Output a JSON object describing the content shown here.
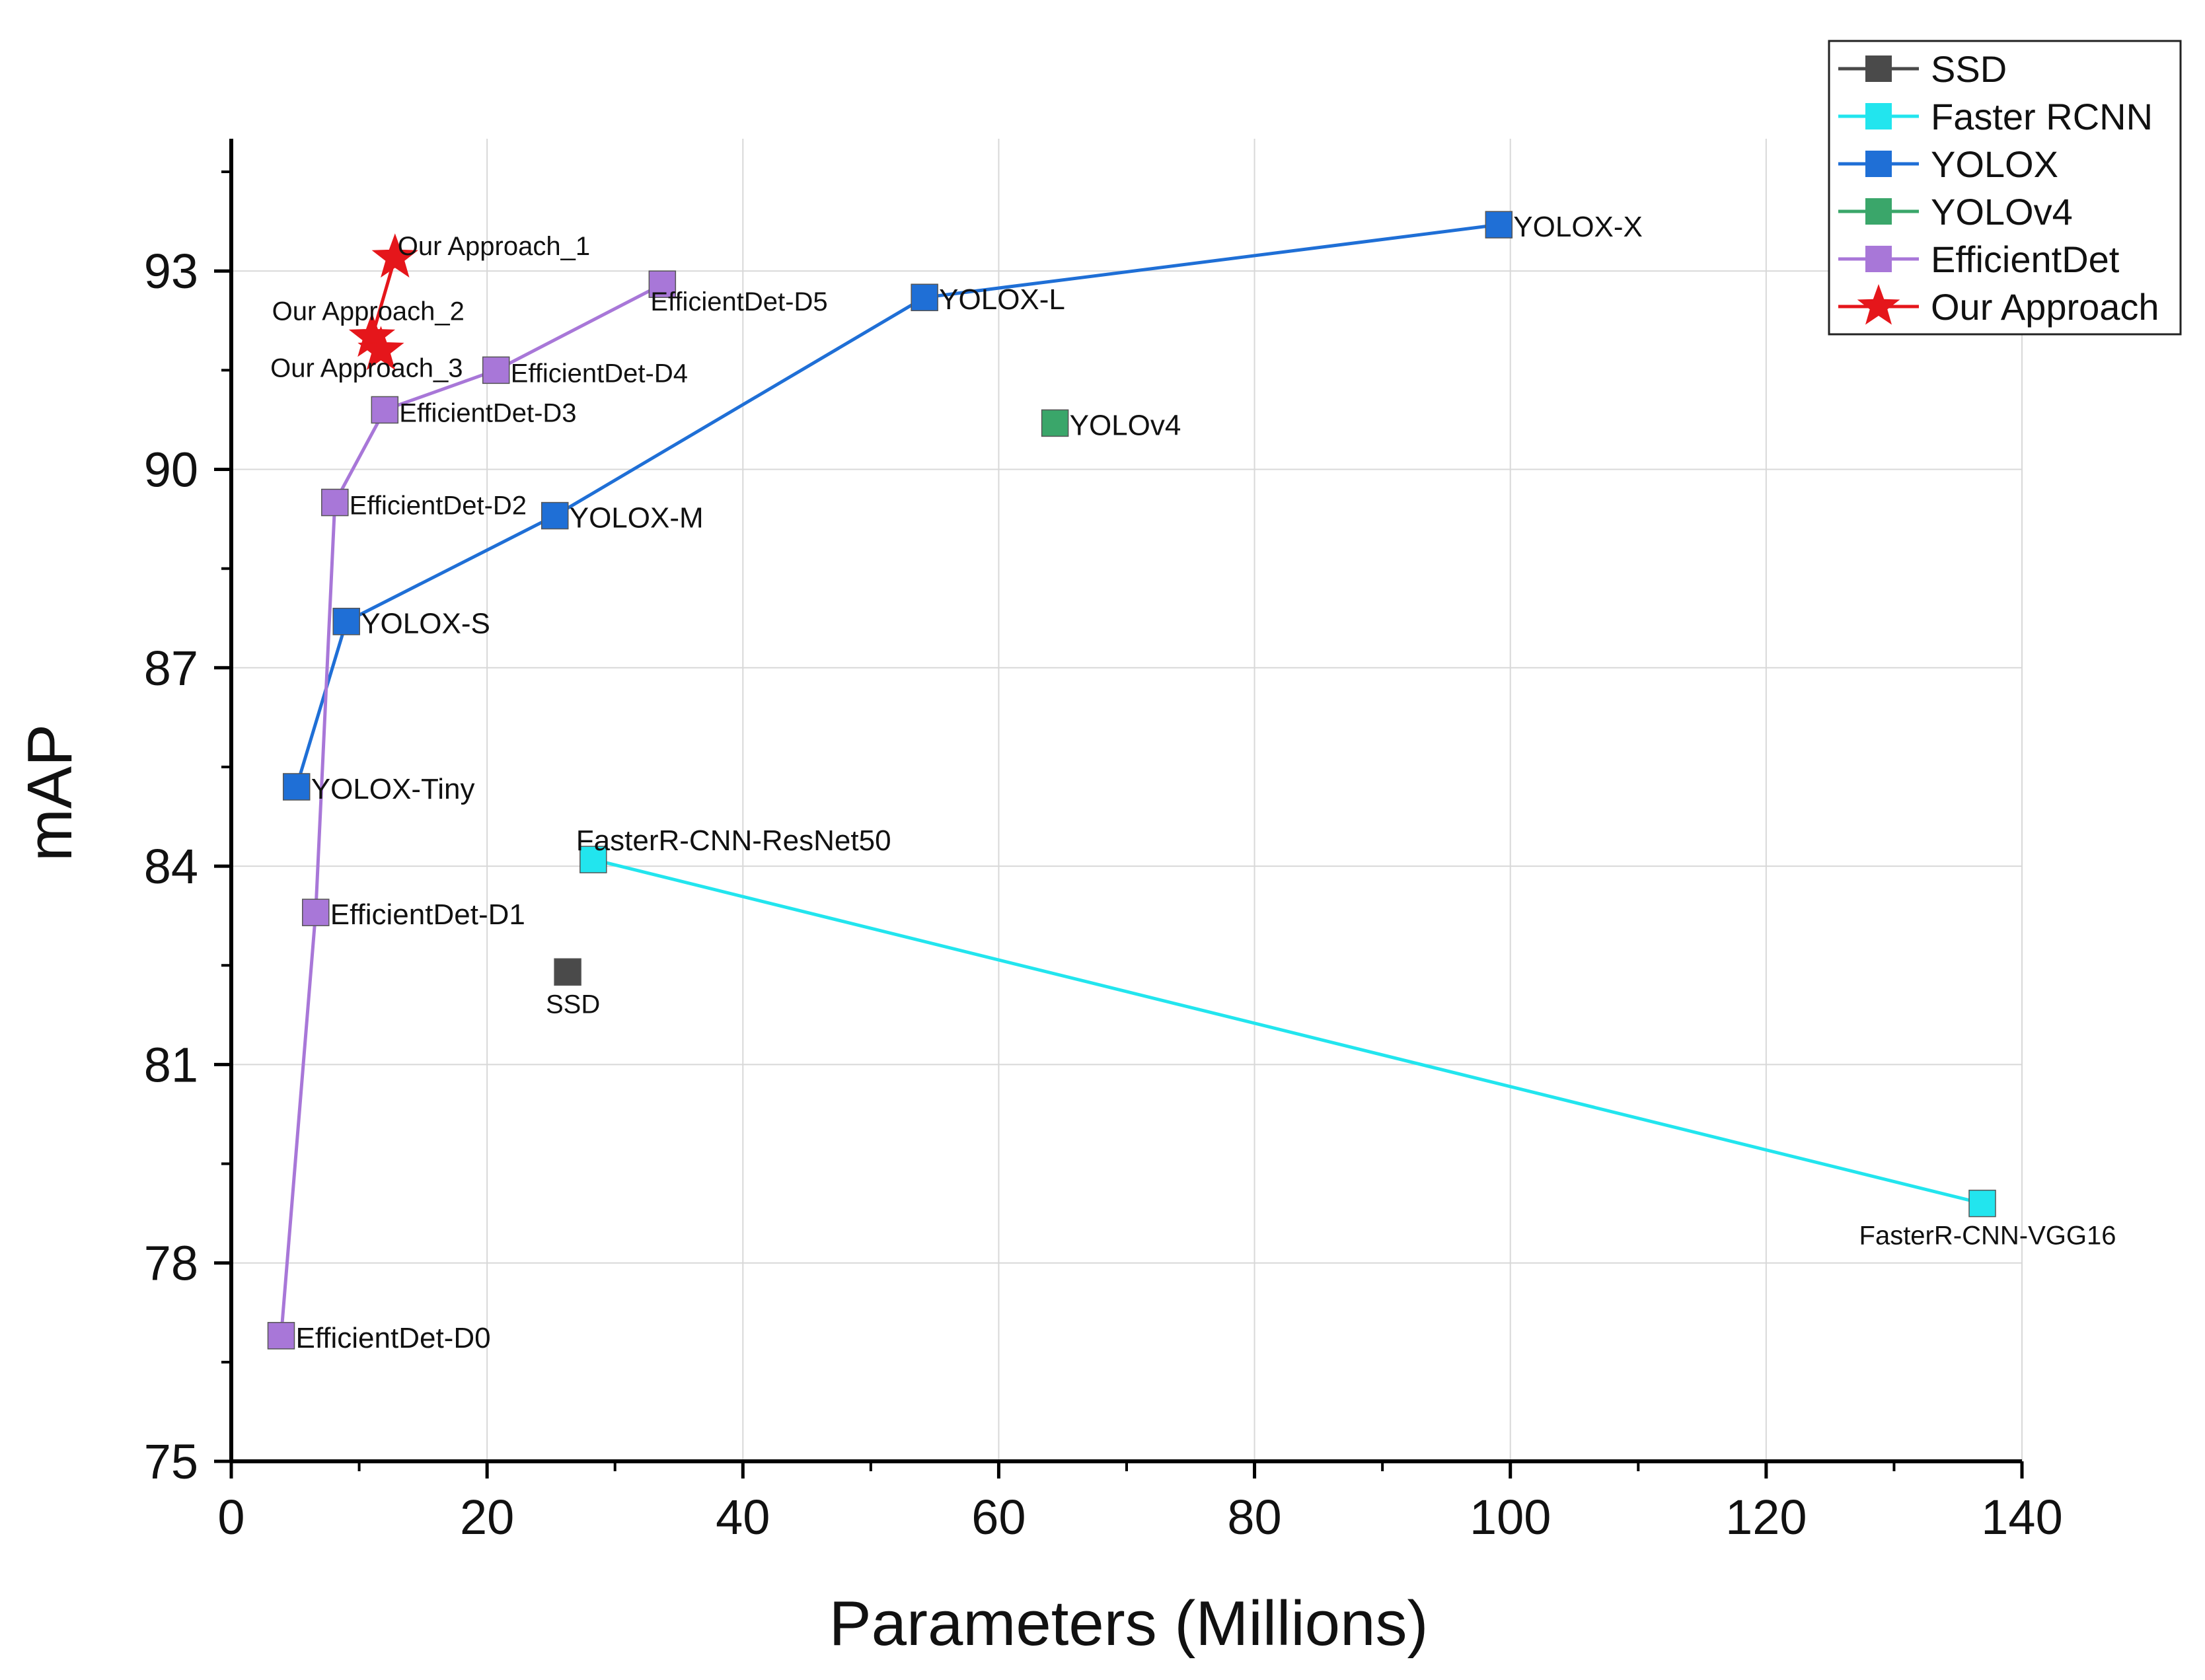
{
  "chart_data": {
    "type": "scatter",
    "title": "",
    "xlabel": "Parameters (Millions)",
    "ylabel": "mAP",
    "xlim": [
      0,
      140
    ],
    "ylim": [
      75,
      95
    ],
    "xticks": [
      0,
      20,
      40,
      60,
      80,
      100,
      120,
      140
    ],
    "yticks": [
      75,
      78,
      81,
      84,
      87,
      90,
      93
    ],
    "grid": true,
    "legend_position": "top-right",
    "series": [
      {
        "name": "SSD",
        "color": "#4a4a4a",
        "marker": "square",
        "connected": false,
        "points": [
          {
            "x": 26.3,
            "y": 82.4,
            "label": "SSD",
            "label_pos": "below"
          }
        ]
      },
      {
        "name": "Faster RCNN",
        "color": "#22e5ee",
        "marker": "square",
        "connected": true,
        "points": [
          {
            "x": 28.3,
            "y": 84.1,
            "label": "FasterR-CNN-ResNet50",
            "label_pos": "above"
          },
          {
            "x": 136.9,
            "y": 78.9,
            "label": "FasterR-CNN-VGG16",
            "label_pos": "below"
          }
        ]
      },
      {
        "name": "YOLOX",
        "color": "#1f6fd6",
        "marker": "square",
        "connected": true,
        "points": [
          {
            "x": 5.1,
            "y": 85.2,
            "label": "YOLOX-Tiny",
            "label_pos": "right"
          },
          {
            "x": 9.0,
            "y": 87.7,
            "label": "YOLOX-S",
            "label_pos": "right"
          },
          {
            "x": 25.3,
            "y": 89.3,
            "label": "YOLOX-M",
            "label_pos": "right"
          },
          {
            "x": 54.2,
            "y": 92.6,
            "label": "YOLOX-L",
            "label_pos": "right"
          },
          {
            "x": 99.1,
            "y": 93.7,
            "label": "YOLOX-X",
            "label_pos": "right"
          }
        ]
      },
      {
        "name": "YOLOv4",
        "color": "#3aa66a",
        "marker": "square",
        "connected": false,
        "points": [
          {
            "x": 64.4,
            "y": 90.7,
            "label": "YOLOv4",
            "label_pos": "right"
          }
        ]
      },
      {
        "name": "EfficientDet",
        "color": "#a877d8",
        "marker": "square",
        "connected": true,
        "points": [
          {
            "x": 3.9,
            "y": 76.9,
            "label": "EfficientDet-D0",
            "label_pos": "right"
          },
          {
            "x": 6.6,
            "y": 83.3,
            "label": "EfficientDet-D1",
            "label_pos": "right"
          },
          {
            "x": 8.1,
            "y": 89.5,
            "label": "EfficientDet-D2",
            "label_pos": "right"
          },
          {
            "x": 12.0,
            "y": 90.9,
            "label": "EfficientDet-D3",
            "label_pos": "right"
          },
          {
            "x": 20.7,
            "y": 91.5,
            "label": "EfficientDet-D4",
            "label_pos": "right"
          },
          {
            "x": 33.7,
            "y": 92.8,
            "label": "EfficientDet-D5",
            "label_pos": "below-right"
          }
        ]
      },
      {
        "name": "Our Approach",
        "color": "#e5161b",
        "marker": "star",
        "connected": true,
        "points": [
          {
            "x": 12.8,
            "y": 93.2,
            "label": "Our Approach_1",
            "label_pos": "above-right"
          },
          {
            "x": 11.0,
            "y": 92.0,
            "label": "Our Approach_2",
            "label_pos": "above-left"
          },
          {
            "x": 11.7,
            "y": 91.8,
            "label": "Our Approach_3",
            "label_pos": "below-left"
          }
        ]
      }
    ]
  }
}
